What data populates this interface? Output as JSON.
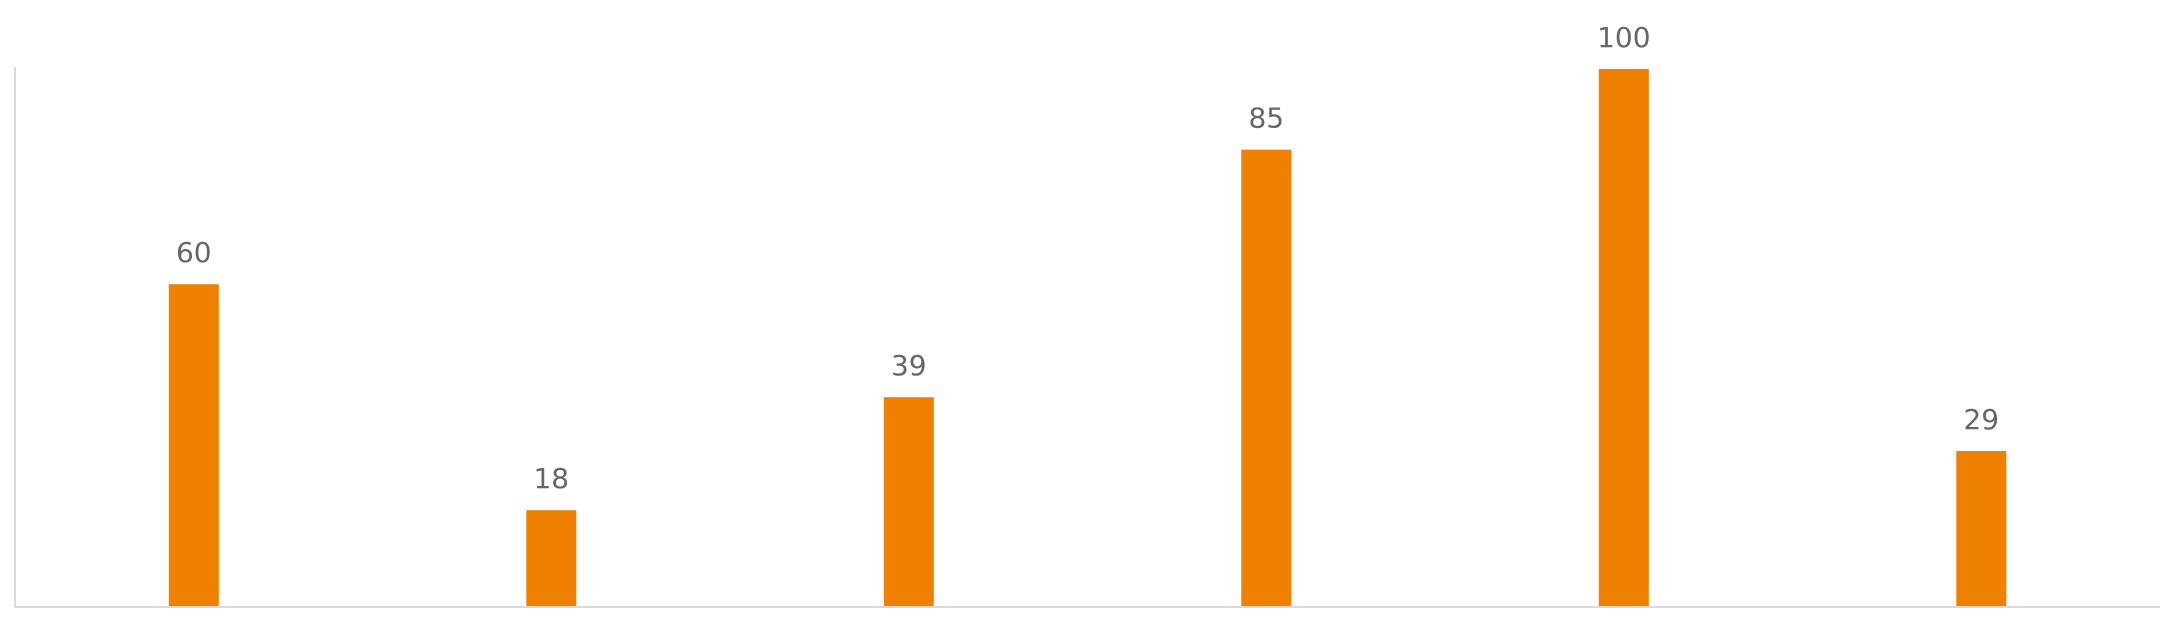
{
  "chart_data": {
    "type": "bar",
    "categories": [
      "",
      "",
      "",
      "",
      "",
      ""
    ],
    "values": [
      60,
      18,
      39,
      85,
      100,
      29
    ],
    "data_labels": [
      "60",
      "18",
      "39",
      "85",
      "100",
      "29"
    ],
    "title": "",
    "xlabel": "",
    "ylabel": "",
    "ylim": [
      0,
      100
    ],
    "grid": false,
    "legend": "none",
    "colors": {
      "bar": "#F08000",
      "axis": "#D9D9D9",
      "label": "#666666",
      "background": "#FFFFFF"
    }
  }
}
